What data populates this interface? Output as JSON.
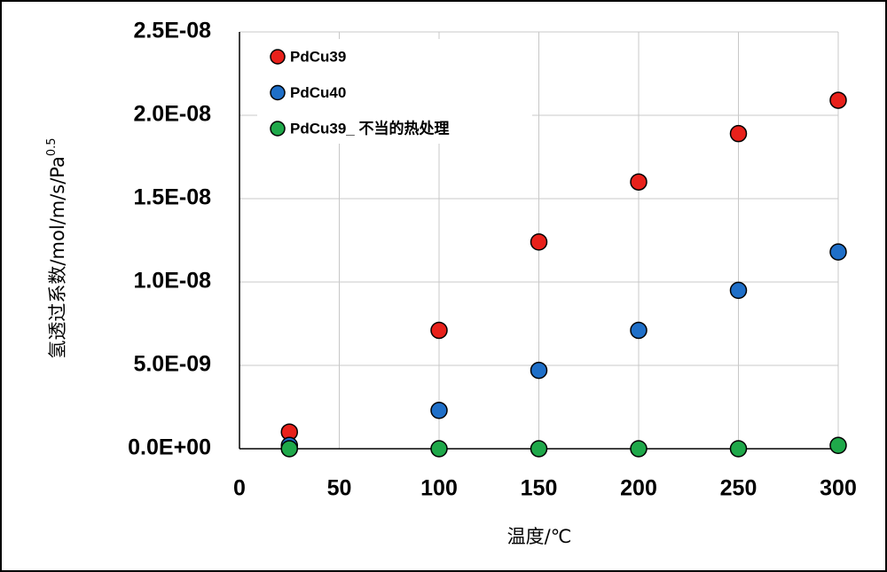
{
  "chart_data": {
    "type": "scatter",
    "x_label": "温度/℃",
    "y_label": "氢透过系数/mol/m/s/Pa",
    "y_label_sup": "0.5",
    "xlim": [
      0,
      300
    ],
    "xticks": [
      0,
      50,
      100,
      150,
      200,
      250,
      300
    ],
    "ylim": [
      0,
      2.5e-08
    ],
    "yticks": [
      {
        "value": 0,
        "label": "0.0E+00"
      },
      {
        "value": 5e-09,
        "label": "5.0E-09"
      },
      {
        "value": 1e-08,
        "label": "1.0E-08"
      },
      {
        "value": 1.5e-08,
        "label": "1.5E-08"
      },
      {
        "value": 2e-08,
        "label": "2.0E-08"
      },
      {
        "value": 2.5e-08,
        "label": "2.5E-08"
      }
    ],
    "grid": true,
    "legend": "upper left",
    "series": [
      {
        "name": "PdCu39",
        "color": "#e8211b",
        "x": [
          25,
          100,
          150,
          200,
          250,
          300
        ],
        "values": [
          1e-09,
          7.1e-09,
          1.24e-08,
          1.6e-08,
          1.89e-08,
          2.09e-08
        ]
      },
      {
        "name": "PdCu40",
        "color": "#1f6fc8",
        "x": [
          25,
          100,
          150,
          200,
          250,
          300
        ],
        "values": [
          2e-10,
          2.3e-09,
          4.7e-09,
          7.1e-09,
          9.5e-09,
          1.18e-08
        ]
      },
      {
        "name": "PdCu39_ 不当的热处理",
        "color": "#1fa84a",
        "x": [
          25,
          100,
          150,
          200,
          250,
          300
        ],
        "values": [
          0,
          0,
          0,
          0,
          0,
          2e-10
        ]
      }
    ]
  }
}
